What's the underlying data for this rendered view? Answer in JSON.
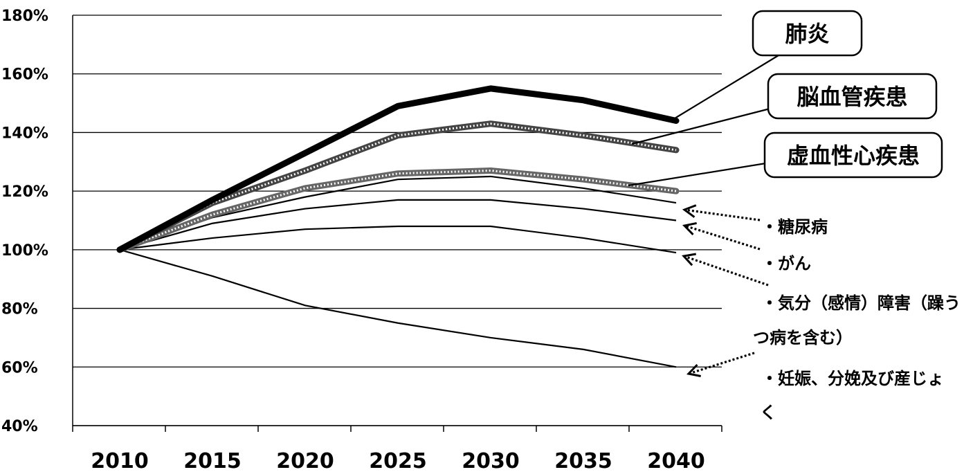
{
  "chart_data": {
    "type": "line",
    "x": [
      2010,
      2015,
      2020,
      2025,
      2030,
      2035,
      2040
    ],
    "ylim": [
      40,
      180
    ],
    "y_ticks": [
      "40%",
      "60%",
      "80%",
      "100%",
      "120%",
      "140%",
      "160%",
      "180%"
    ],
    "x_ticks": [
      "2010",
      "2015",
      "2020",
      "2025",
      "2030",
      "2035",
      "2040"
    ],
    "grid": "horizontal",
    "series": [
      {
        "name": "肺炎",
        "values": [
          100,
          117,
          133,
          149,
          155,
          151,
          144
        ],
        "style": "bold",
        "color": "#000000"
      },
      {
        "name": "脳血管疾患",
        "values": [
          100,
          116,
          127,
          139,
          143,
          139,
          134
        ],
        "style": "hatched",
        "color": "#444444"
      },
      {
        "name": "虚血性心疾患",
        "values": [
          100,
          112,
          121,
          126,
          127,
          124,
          120
        ],
        "style": "hatched",
        "color": "#666666"
      },
      {
        "name": "糖尿病",
        "values": [
          100,
          111,
          118,
          124,
          125,
          121,
          116
        ],
        "style": "thin",
        "color": "#000000"
      },
      {
        "name": "がん",
        "values": [
          100,
          109,
          114,
          117,
          117,
          114,
          110
        ],
        "style": "thin",
        "color": "#000000"
      },
      {
        "name": "気分（感情）障害（躁うつ病を含む）",
        "values": [
          100,
          104,
          107,
          108,
          108,
          104,
          99
        ],
        "style": "thin",
        "color": "#000000"
      },
      {
        "name": "妊娠、分娩及び産じょく",
        "values": [
          100,
          91,
          81,
          75,
          70,
          66,
          60
        ],
        "style": "thin",
        "color": "#000000"
      }
    ],
    "callouts": [
      "肺炎",
      "脳血管疾患",
      "虚血性心疾患"
    ],
    "side_labels": [
      [
        "・糖尿病"
      ],
      [
        "・がん"
      ],
      [
        "・気分（感情）障害（躁う",
        "つ病を含む）"
      ],
      [
        "・妊娠、分娩及び産じょ",
        "く"
      ]
    ]
  }
}
